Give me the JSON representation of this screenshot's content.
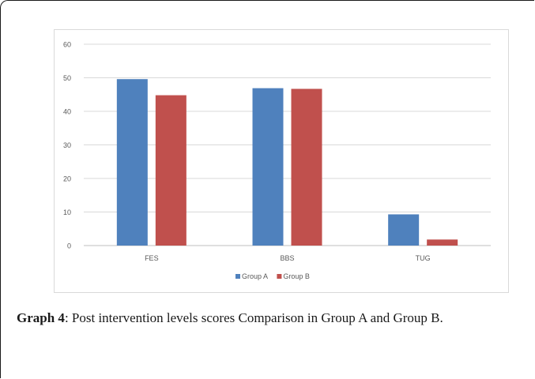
{
  "caption": {
    "label": "Graph 4",
    "text": ": Post intervention levels scores Comparison in Group A and Group B."
  },
  "chart_data": {
    "type": "bar",
    "categories": [
      "FES",
      "BBS",
      "TUG"
    ],
    "series": [
      {
        "name": "Group A",
        "color": "#4f81bd",
        "values": [
          49.6,
          46.9,
          9.3
        ]
      },
      {
        "name": "Group B",
        "color": "#c0504d",
        "values": [
          44.8,
          46.7,
          1.8
        ]
      }
    ],
    "y_ticks": [
      "0",
      "10",
      "20",
      "30",
      "40",
      "50",
      "60"
    ],
    "ylim": [
      0,
      60
    ],
    "grid": true,
    "legend": "bottom"
  }
}
